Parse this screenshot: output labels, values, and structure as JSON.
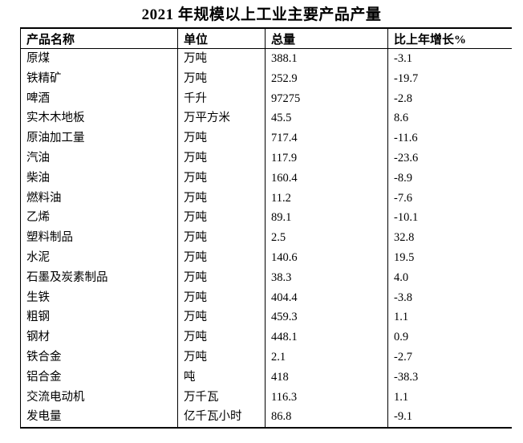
{
  "title": "2021 年规模以上工业主要产品产量",
  "colors": {
    "background": "#ffffff",
    "text": "#000000",
    "border": "#000000"
  },
  "table": {
    "headers": [
      "产品名称",
      "单位",
      "总量",
      "比上年增长%"
    ],
    "rows": [
      [
        "原煤",
        "万吨",
        "388.1",
        "-3.1"
      ],
      [
        "铁精矿",
        "万吨",
        "252.9",
        "-19.7"
      ],
      [
        "啤酒",
        "千升",
        "97275",
        "-2.8"
      ],
      [
        "实木木地板",
        "万平方米",
        "45.5",
        "8.6"
      ],
      [
        "原油加工量",
        "万吨",
        "717.4",
        "-11.6"
      ],
      [
        "汽油",
        "万吨",
        "117.9",
        "-23.6"
      ],
      [
        "柴油",
        "万吨",
        "160.4",
        "-8.9"
      ],
      [
        "燃料油",
        "万吨",
        "11.2",
        "-7.6"
      ],
      [
        "乙烯",
        "万吨",
        "89.1",
        "-10.1"
      ],
      [
        "塑料制品",
        "万吨",
        "2.5",
        "32.8"
      ],
      [
        "水泥",
        "万吨",
        "140.6",
        "19.5"
      ],
      [
        "石墨及炭素制品",
        "万吨",
        "38.3",
        "4.0"
      ],
      [
        "生铁",
        "万吨",
        "404.4",
        "-3.8"
      ],
      [
        "粗钢",
        "万吨",
        "459.3",
        "1.1"
      ],
      [
        "钢材",
        "万吨",
        "448.1",
        "0.9"
      ],
      [
        "铁合金",
        "万吨",
        "2.1",
        "-2.7"
      ],
      [
        "铝合金",
        "吨",
        "418",
        "-38.3"
      ],
      [
        "交流电动机",
        "万千瓦",
        "116.3",
        "1.1"
      ],
      [
        "发电量",
        "亿千瓦小时",
        "86.8",
        "-9.1"
      ]
    ]
  }
}
